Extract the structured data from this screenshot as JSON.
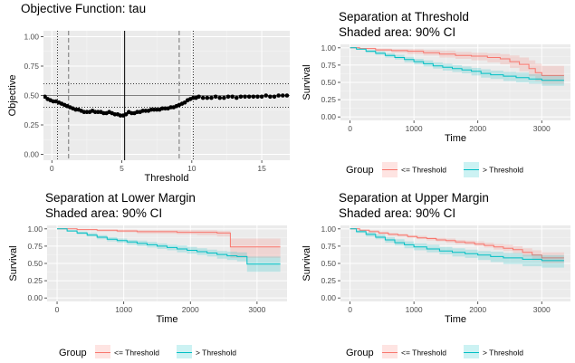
{
  "chart_data": [
    {
      "type": "scatter",
      "title": "Objective Function: tau",
      "xlabel": "Threshold",
      "ylabel": "Objective",
      "xlim": [
        -0.6,
        17
      ],
      "ylim": [
        -0.05,
        1.05
      ],
      "x_ticks": [
        0,
        5,
        10,
        15
      ],
      "y_ticks": [
        "0.00",
        "0.25",
        "0.50",
        "0.75",
        "1.00"
      ],
      "grid": true,
      "reference_lines": {
        "solid_vertical": 5.2,
        "dashed_vertical": [
          1.2,
          9.1
        ],
        "dotted_vertical": [
          0.4,
          10.1
        ],
        "solid_horizontal": 0.5,
        "dotted_horizontal": [
          0.4,
          0.6
        ]
      },
      "series": [
        {
          "x": [
            -0.5,
            -0.3,
            -0.1,
            0.1,
            0.3,
            0.5,
            0.7,
            0.9,
            1.1,
            1.3,
            1.5,
            1.7,
            1.9,
            2.1,
            2.3,
            2.5,
            2.7,
            2.9,
            3.1,
            3.3,
            3.5,
            3.7,
            3.9,
            4.1,
            4.3,
            4.5,
            4.7,
            4.9,
            5.1,
            5.3,
            5.5,
            5.7,
            5.9,
            6.1,
            6.3,
            6.5,
            6.7,
            6.9,
            7.1,
            7.3,
            7.5,
            7.7,
            7.9,
            8.1,
            8.3,
            8.5,
            8.7,
            8.9,
            9.1,
            9.3,
            9.5,
            9.7,
            9.9,
            10.1,
            10.3,
            10.5,
            10.8,
            11.1,
            11.4,
            11.7,
            12.0,
            12.3,
            12.6,
            12.9,
            13.2,
            13.5,
            13.8,
            14.1,
            14.4,
            14.7,
            15.0,
            15.3,
            15.6,
            15.9,
            16.2,
            16.5,
            16.8
          ],
          "y": [
            0.49,
            0.47,
            0.46,
            0.45,
            0.45,
            0.44,
            0.43,
            0.42,
            0.41,
            0.4,
            0.39,
            0.38,
            0.38,
            0.37,
            0.36,
            0.36,
            0.36,
            0.37,
            0.36,
            0.36,
            0.36,
            0.35,
            0.35,
            0.36,
            0.35,
            0.34,
            0.34,
            0.33,
            0.33,
            0.34,
            0.36,
            0.35,
            0.35,
            0.36,
            0.36,
            0.37,
            0.37,
            0.37,
            0.38,
            0.38,
            0.38,
            0.38,
            0.39,
            0.39,
            0.39,
            0.4,
            0.4,
            0.41,
            0.42,
            0.43,
            0.44,
            0.46,
            0.47,
            0.48,
            0.48,
            0.49,
            0.48,
            0.48,
            0.48,
            0.49,
            0.48,
            0.48,
            0.49,
            0.49,
            0.48,
            0.49,
            0.49,
            0.49,
            0.49,
            0.49,
            0.49,
            0.5,
            0.49,
            0.49,
            0.5,
            0.5,
            0.5
          ]
        }
      ]
    },
    {
      "type": "line",
      "title": "Separation at Threshold",
      "subtitle": "Shaded area: 90% CI",
      "xlabel": "Time",
      "ylabel": "Survival",
      "xlim": [
        -150,
        3450
      ],
      "ylim": [
        -0.05,
        1.05
      ],
      "x_ticks": [
        0,
        1000,
        2000,
        3000
      ],
      "y_ticks": [
        "0.00",
        "0.25",
        "0.50",
        "0.75",
        "1.00"
      ],
      "grid": true,
      "series": [
        {
          "name": "<= Threshold",
          "color": "#F8766D",
          "x": [
            0,
            150,
            400,
            650,
            900,
            1150,
            1400,
            1650,
            1900,
            2150,
            2350,
            2500,
            2650,
            2800,
            2900,
            3000,
            3350
          ],
          "y": [
            1.0,
            0.99,
            0.97,
            0.96,
            0.95,
            0.93,
            0.91,
            0.89,
            0.88,
            0.86,
            0.84,
            0.8,
            0.76,
            0.7,
            0.64,
            0.6,
            0.6
          ],
          "lower": [
            1.0,
            0.98,
            0.95,
            0.93,
            0.91,
            0.89,
            0.86,
            0.84,
            0.82,
            0.79,
            0.76,
            0.71,
            0.66,
            0.59,
            0.52,
            0.48,
            0.48
          ],
          "upper": [
            1.0,
            1.0,
            0.99,
            0.98,
            0.98,
            0.97,
            0.96,
            0.94,
            0.93,
            0.92,
            0.91,
            0.89,
            0.86,
            0.82,
            0.77,
            0.74,
            0.74
          ]
        },
        {
          "name": "> Threshold",
          "color": "#00BFC4",
          "x": [
            0,
            100,
            250,
            400,
            550,
            700,
            850,
            1000,
            1150,
            1300,
            1450,
            1600,
            1750,
            1900,
            2050,
            2200,
            2400,
            2600,
            2800,
            3000,
            3350
          ],
          "y": [
            1.0,
            0.98,
            0.95,
            0.92,
            0.89,
            0.86,
            0.83,
            0.8,
            0.77,
            0.74,
            0.72,
            0.7,
            0.68,
            0.66,
            0.63,
            0.61,
            0.59,
            0.57,
            0.55,
            0.53,
            0.53
          ],
          "lower": [
            1.0,
            0.97,
            0.93,
            0.9,
            0.86,
            0.83,
            0.79,
            0.76,
            0.73,
            0.7,
            0.67,
            0.65,
            0.63,
            0.6,
            0.57,
            0.55,
            0.52,
            0.5,
            0.48,
            0.45,
            0.45
          ],
          "upper": [
            1.0,
            0.99,
            0.97,
            0.95,
            0.92,
            0.9,
            0.87,
            0.84,
            0.82,
            0.79,
            0.77,
            0.75,
            0.73,
            0.71,
            0.69,
            0.67,
            0.65,
            0.64,
            0.62,
            0.6,
            0.6
          ]
        }
      ]
    },
    {
      "type": "line",
      "title": "Separation at Lower Margin",
      "subtitle": "Shaded area: 90% CI",
      "xlabel": "Time",
      "ylabel": "Survival",
      "xlim": [
        -150,
        3450
      ],
      "ylim": [
        -0.05,
        1.05
      ],
      "x_ticks": [
        0,
        1000,
        2000,
        3000
      ],
      "y_ticks": [
        "0.00",
        "0.25",
        "0.50",
        "0.75",
        "1.00"
      ],
      "grid": true,
      "series": [
        {
          "name": "<= Threshold",
          "color": "#F8766D",
          "x": [
            0,
            300,
            600,
            900,
            1200,
            1500,
            1800,
            2100,
            2400,
            2600,
            3350
          ],
          "y": [
            1.0,
            0.99,
            0.98,
            0.97,
            0.96,
            0.96,
            0.95,
            0.95,
            0.94,
            0.74,
            0.74
          ],
          "lower": [
            1.0,
            0.98,
            0.96,
            0.95,
            0.93,
            0.93,
            0.92,
            0.91,
            0.89,
            0.58,
            0.58
          ],
          "upper": [
            1.0,
            1.0,
            0.99,
            0.99,
            0.98,
            0.98,
            0.98,
            0.98,
            0.97,
            0.86,
            0.86
          ]
        },
        {
          "name": "> Threshold",
          "color": "#00BFC4",
          "x": [
            0,
            150,
            300,
            450,
            600,
            750,
            900,
            1050,
            1200,
            1350,
            1500,
            1650,
            1800,
            1950,
            2100,
            2250,
            2400,
            2550,
            2700,
            2850,
            3350
          ],
          "y": [
            1.0,
            0.97,
            0.94,
            0.91,
            0.88,
            0.85,
            0.83,
            0.81,
            0.79,
            0.77,
            0.75,
            0.73,
            0.71,
            0.69,
            0.67,
            0.65,
            0.63,
            0.61,
            0.6,
            0.49,
            0.49
          ],
          "lower": [
            1.0,
            0.96,
            0.92,
            0.89,
            0.85,
            0.82,
            0.8,
            0.77,
            0.75,
            0.73,
            0.71,
            0.69,
            0.66,
            0.64,
            0.62,
            0.6,
            0.57,
            0.55,
            0.53,
            0.38,
            0.38
          ],
          "upper": [
            1.0,
            0.98,
            0.96,
            0.94,
            0.91,
            0.88,
            0.86,
            0.84,
            0.83,
            0.81,
            0.79,
            0.77,
            0.76,
            0.74,
            0.72,
            0.7,
            0.68,
            0.67,
            0.66,
            0.6,
            0.6
          ]
        }
      ]
    },
    {
      "type": "line",
      "title": "Separation at Upper Margin",
      "subtitle": "Shaded area: 90% CI",
      "xlabel": "Time",
      "ylabel": "Survival",
      "xlim": [
        -150,
        3450
      ],
      "ylim": [
        -0.05,
        1.05
      ],
      "x_ticks": [
        0,
        1000,
        2000,
        3000
      ],
      "y_ticks": [
        "0.00",
        "0.25",
        "0.50",
        "0.75",
        "1.00"
      ],
      "grid": true,
      "series": [
        {
          "name": "<= Threshold",
          "color": "#F8766D",
          "x": [
            0,
            150,
            300,
            450,
            600,
            750,
            900,
            1050,
            1200,
            1350,
            1500,
            1650,
            1800,
            1950,
            2100,
            2250,
            2400,
            2550,
            2700,
            2850,
            3000,
            3350
          ],
          "y": [
            1.0,
            0.98,
            0.96,
            0.94,
            0.92,
            0.91,
            0.89,
            0.87,
            0.86,
            0.84,
            0.83,
            0.81,
            0.8,
            0.78,
            0.76,
            0.74,
            0.72,
            0.7,
            0.66,
            0.62,
            0.58,
            0.58
          ],
          "lower": [
            1.0,
            0.97,
            0.95,
            0.92,
            0.9,
            0.89,
            0.87,
            0.85,
            0.83,
            0.82,
            0.8,
            0.78,
            0.77,
            0.75,
            0.73,
            0.7,
            0.68,
            0.65,
            0.6,
            0.55,
            0.5,
            0.5
          ],
          "upper": [
            1.0,
            0.99,
            0.98,
            0.96,
            0.94,
            0.93,
            0.91,
            0.9,
            0.88,
            0.87,
            0.86,
            0.84,
            0.83,
            0.82,
            0.8,
            0.78,
            0.77,
            0.75,
            0.72,
            0.69,
            0.66,
            0.66
          ]
        },
        {
          "name": "> Threshold",
          "color": "#00BFC4",
          "x": [
            0,
            100,
            250,
            400,
            550,
            700,
            850,
            1000,
            1200,
            1400,
            1600,
            1800,
            2000,
            2200,
            2400,
            2700,
            3000,
            3350
          ],
          "y": [
            1.0,
            0.96,
            0.92,
            0.88,
            0.84,
            0.8,
            0.77,
            0.74,
            0.71,
            0.68,
            0.66,
            0.64,
            0.62,
            0.6,
            0.58,
            0.56,
            0.54,
            0.54
          ],
          "lower": [
            1.0,
            0.94,
            0.89,
            0.85,
            0.8,
            0.76,
            0.72,
            0.69,
            0.66,
            0.63,
            0.6,
            0.58,
            0.55,
            0.52,
            0.49,
            0.46,
            0.44,
            0.44
          ],
          "upper": [
            1.0,
            0.98,
            0.95,
            0.92,
            0.88,
            0.85,
            0.82,
            0.79,
            0.77,
            0.74,
            0.72,
            0.7,
            0.68,
            0.67,
            0.65,
            0.63,
            0.62,
            0.62
          ]
        }
      ]
    }
  ],
  "legend": {
    "title": "Group",
    "entries": [
      "<= Threshold",
      "> Threshold"
    ],
    "colors": [
      "#F8766D",
      "#00BFC4"
    ],
    "placement": "bottom"
  }
}
